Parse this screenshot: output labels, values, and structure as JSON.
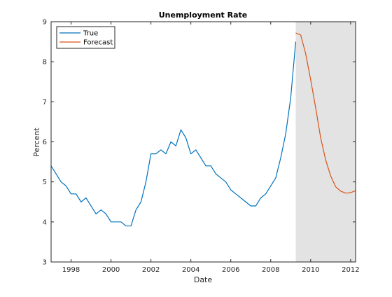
{
  "chart_data": {
    "type": "line",
    "title": "Unemployment Rate",
    "xlabel": "Date",
    "ylabel": "Percent",
    "xlim": [
      1997.0,
      2012.25
    ],
    "ylim": [
      3,
      9
    ],
    "xticks": [
      1998,
      2000,
      2002,
      2004,
      2006,
      2008,
      2010,
      2012
    ],
    "xtick_labels": [
      "1998",
      "2000",
      "2002",
      "2004",
      "2006",
      "2008",
      "2010",
      "2012"
    ],
    "yticks": [
      3,
      4,
      5,
      6,
      7,
      8,
      9
    ],
    "ytick_labels": [
      "3",
      "4",
      "5",
      "6",
      "7",
      "8",
      "9"
    ],
    "grid": false,
    "legend_position": "top-left",
    "shaded_region": {
      "x_start": 2009.25,
      "x_end": 2012.25,
      "color": "#e3e3e3"
    },
    "series": [
      {
        "name": "True",
        "color": "#0072BD",
        "x": [
          1997.0,
          1997.25,
          1997.5,
          1997.75,
          1998.0,
          1998.25,
          1998.5,
          1998.75,
          1999.0,
          1999.25,
          1999.5,
          1999.75,
          2000.0,
          2000.25,
          2000.5,
          2000.75,
          2001.0,
          2001.25,
          2001.5,
          2001.75,
          2002.0,
          2002.25,
          2002.5,
          2002.75,
          2003.0,
          2003.25,
          2003.5,
          2003.75,
          2004.0,
          2004.25,
          2004.5,
          2004.75,
          2005.0,
          2005.25,
          2005.5,
          2005.75,
          2006.0,
          2006.25,
          2006.5,
          2006.75,
          2007.0,
          2007.25,
          2007.5,
          2007.75,
          2008.0,
          2008.25,
          2008.5,
          2008.75,
          2009.0,
          2009.25
        ],
        "values": [
          5.4,
          5.2,
          5.0,
          4.9,
          4.7,
          4.7,
          4.5,
          4.6,
          4.4,
          4.2,
          4.3,
          4.2,
          4.0,
          4.0,
          4.0,
          3.9,
          3.9,
          4.3,
          4.5,
          5.0,
          5.7,
          5.7,
          5.8,
          5.7,
          6.0,
          5.9,
          6.3,
          6.1,
          5.7,
          5.8,
          5.6,
          5.4,
          5.4,
          5.2,
          5.1,
          5.0,
          4.8,
          4.7,
          4.6,
          4.5,
          4.4,
          4.4,
          4.6,
          4.7,
          4.9,
          5.1,
          5.6,
          6.2,
          7.1,
          8.5
        ]
      },
      {
        "name": "Forecast",
        "color": "#D95319",
        "x": [
          2009.25,
          2009.5,
          2009.75,
          2010.0,
          2010.25,
          2010.5,
          2010.75,
          2011.0,
          2011.25,
          2011.5,
          2011.75,
          2012.0,
          2012.25
        ],
        "values": [
          8.72,
          8.67,
          8.2,
          7.55,
          6.85,
          6.1,
          5.55,
          5.15,
          4.88,
          4.77,
          4.72,
          4.73,
          4.78
        ]
      }
    ]
  }
}
